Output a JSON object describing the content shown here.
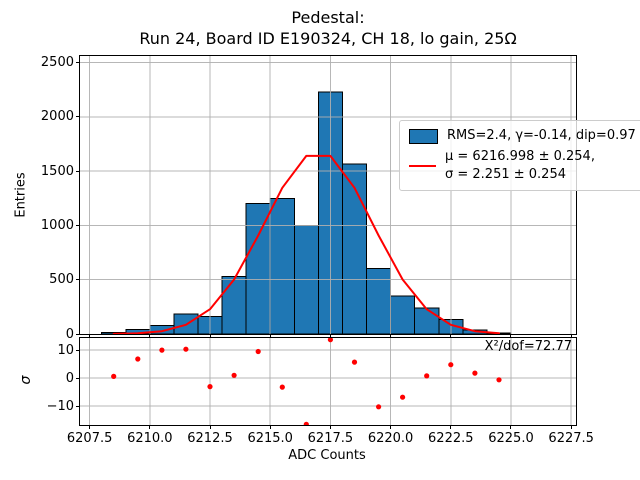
{
  "title": {
    "line1": "Pedestal:",
    "line2": "Run 24, Board ID E190324, CH 18, lo gain, 25Ω"
  },
  "xlabel": "ADC Counts",
  "main_plot": {
    "ylabel": "Entries"
  },
  "residual_plot": {
    "ylabel": "σ",
    "annotation": "X²/dof=72.77"
  },
  "legend": {
    "items": [
      {
        "swatch": "histogram-patch",
        "label": "RMS=2.4, γ=-0.14, dip=0.97"
      },
      {
        "swatch": "fit-line",
        "label_line1": "μ = 6216.998 ± 0.254,",
        "label_line2": "σ = 2.251 ± 0.254"
      }
    ]
  },
  "colors": {
    "bar_fill": "#1f77b4",
    "bar_edge": "#000000",
    "fit_curve": "#ff0000",
    "residual_points": "#ff0000",
    "grid": "#b0b0b0",
    "legend_border": "#cccccc"
  },
  "chart_data": [
    {
      "type": "bar",
      "name": "pedestal-histogram",
      "title": "Pedestal: Run 24, Board ID E190324, CH 18, lo gain, 25Ω",
      "xlabel": "ADC Counts",
      "ylabel": "Entries",
      "bin_width": 1,
      "bin_left_edges": [
        6208,
        6209,
        6210,
        6211,
        6212,
        6213,
        6214,
        6215,
        6216,
        6217,
        6218,
        6219,
        6220,
        6221,
        6222,
        6223,
        6224
      ],
      "counts": [
        12,
        40,
        80,
        185,
        160,
        530,
        1200,
        1250,
        1000,
        2230,
        1565,
        605,
        350,
        240,
        135,
        35,
        8
      ],
      "xlim": [
        6207.1,
        6227.7
      ],
      "ylim": [
        0,
        2560
      ],
      "xticks": [
        6207.5,
        6210.0,
        6212.5,
        6215.0,
        6217.5,
        6220.0,
        6222.5,
        6225.0,
        6227.5
      ],
      "xtick_labels": [
        "6207.5",
        "6210.0",
        "6212.5",
        "6215.0",
        "6217.5",
        "6220.0",
        "6222.5",
        "6225.0",
        "6227.5"
      ],
      "yticks": [
        0,
        500,
        1000,
        1500,
        2000,
        2500
      ],
      "ytick_labels": [
        "0",
        "500",
        "1000",
        "1500",
        "2000",
        "2500"
      ],
      "grid": true,
      "legend_position": "upper right",
      "fit": {
        "mu": 6216.998,
        "mu_err": 0.254,
        "sigma": 2.251,
        "sigma_err": 0.254,
        "rms": 2.4,
        "gamma": -0.14,
        "dip": 0.97,
        "chi2_dof": 72.77
      },
      "fit_curve_x": [
        6208.5,
        6209.5,
        6210.5,
        6211.5,
        6212.5,
        6213.5,
        6214.5,
        6215.5,
        6216.5,
        6217.5,
        6218.5,
        6219.5,
        6220.5,
        6221.5,
        6222.5,
        6223.5,
        6224.5
      ],
      "fit_curve_y": [
        1.3,
        6.5,
        26,
        85,
        228,
        502,
        907,
        1346,
        1640,
        1640,
        1346,
        907,
        502,
        228,
        85,
        26,
        6.5
      ]
    },
    {
      "type": "scatter",
      "name": "fit-residuals",
      "ylabel": "σ",
      "x": [
        6208.5,
        6209.5,
        6210.5,
        6211.5,
        6212.5,
        6213.5,
        6214.5,
        6215.5,
        6216.5,
        6217.5,
        6218.5,
        6219.5,
        6220.5,
        6221.5,
        6222.5,
        6223.5,
        6224.5
      ],
      "y": [
        0.6,
        6.8,
        10.0,
        10.3,
        -3.0,
        1.0,
        9.5,
        -3.2,
        -16.5,
        13.7,
        5.7,
        -10.2,
        -6.8,
        0.8,
        4.8,
        1.8,
        -0.6
      ],
      "xlim": [
        6207.1,
        6227.7
      ],
      "ylim": [
        -16.7,
        14.3
      ],
      "yticks": [
        -10,
        0,
        10
      ],
      "ytick_labels": [
        "−10",
        "0",
        "10"
      ],
      "grid": true,
      "annotation": "X²/dof=72.77"
    }
  ]
}
